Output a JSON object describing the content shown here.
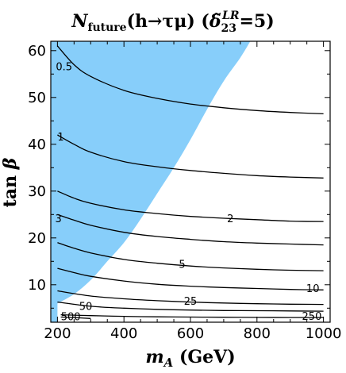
{
  "chart_data": {
    "type": "contour",
    "title": {
      "main": "N",
      "main_sub": "future",
      "process": "(h→τμ) (",
      "delta": "δ̃",
      "delta_sub": "23",
      "delta_sup": "LR",
      "tail": "=5)"
    },
    "xlabel": {
      "var": "m",
      "sub": "A",
      "unit": " (GeV)"
    },
    "ylabel": {
      "var": "tan ",
      "greek": "β"
    },
    "xlim": [
      180,
      1020
    ],
    "ylim": [
      2,
      62
    ],
    "xticks": [
      200,
      400,
      600,
      800,
      1000
    ],
    "yticks": [
      10,
      20,
      30,
      40,
      50,
      60
    ],
    "excluded_region_color": "#87cefa",
    "excluded_region_boundary": [
      [
        200,
        6
      ],
      [
        250,
        8
      ],
      [
        300,
        11
      ],
      [
        350,
        15
      ],
      [
        400,
        19
      ],
      [
        450,
        24
      ],
      [
        500,
        29.5
      ],
      [
        550,
        35
      ],
      [
        600,
        41
      ],
      [
        650,
        47.5
      ],
      [
        700,
        53.5
      ],
      [
        750,
        58.5
      ],
      [
        780,
        62
      ]
    ],
    "contours": [
      {
        "label": "0.5",
        "points": [
          [
            200,
            61
          ],
          [
            250,
            57
          ],
          [
            300,
            54.5
          ],
          [
            400,
            51.5
          ],
          [
            500,
            49.8
          ],
          [
            600,
            48.6
          ],
          [
            700,
            47.8
          ],
          [
            800,
            47.2
          ],
          [
            900,
            46.8
          ],
          [
            1000,
            46.5
          ]
        ]
      },
      {
        "label": "1",
        "points": [
          [
            200,
            42
          ],
          [
            250,
            40
          ],
          [
            300,
            38.3
          ],
          [
            400,
            36.3
          ],
          [
            500,
            35.2
          ],
          [
            600,
            34.4
          ],
          [
            700,
            33.8
          ],
          [
            800,
            33.3
          ],
          [
            900,
            33
          ],
          [
            1000,
            32.8
          ]
        ]
      },
      {
        "label": "2",
        "points": [
          [
            200,
            30
          ],
          [
            250,
            28.5
          ],
          [
            300,
            27.4
          ],
          [
            400,
            26
          ],
          [
            500,
            25.2
          ],
          [
            600,
            24.6
          ],
          [
            700,
            24.2
          ],
          [
            800,
            23.9
          ],
          [
            900,
            23.6
          ],
          [
            1000,
            23.5
          ]
        ]
      },
      {
        "label": "3",
        "points": [
          [
            200,
            25
          ],
          [
            250,
            23.8
          ],
          [
            300,
            22.7
          ],
          [
            400,
            21.2
          ],
          [
            500,
            20.3
          ],
          [
            600,
            19.7
          ],
          [
            700,
            19.2
          ],
          [
            800,
            18.9
          ],
          [
            900,
            18.7
          ],
          [
            1000,
            18.5
          ]
        ]
      },
      {
        "label": "5",
        "points": [
          [
            200,
            19
          ],
          [
            250,
            17.8
          ],
          [
            300,
            16.8
          ],
          [
            400,
            15.4
          ],
          [
            500,
            14.6
          ],
          [
            600,
            14
          ],
          [
            700,
            13.6
          ],
          [
            800,
            13.3
          ],
          [
            900,
            13.1
          ],
          [
            1000,
            13
          ]
        ]
      },
      {
        "label": "10",
        "points": [
          [
            200,
            13.5
          ],
          [
            250,
            12.6
          ],
          [
            300,
            11.8
          ],
          [
            400,
            10.8
          ],
          [
            500,
            10.1
          ],
          [
            600,
            9.7
          ],
          [
            700,
            9.4
          ],
          [
            800,
            9.2
          ],
          [
            900,
            9
          ],
          [
            1000,
            8.9
          ]
        ]
      },
      {
        "label": "25",
        "points": [
          [
            200,
            8.7
          ],
          [
            300,
            7.6
          ],
          [
            400,
            7
          ],
          [
            500,
            6.6
          ],
          [
            600,
            6.3
          ],
          [
            700,
            6.1
          ],
          [
            800,
            5.95
          ],
          [
            900,
            5.85
          ],
          [
            1000,
            5.8
          ]
        ]
      },
      {
        "label": "50",
        "points": [
          [
            200,
            6.3
          ],
          [
            300,
            5.4
          ],
          [
            400,
            5
          ],
          [
            500,
            4.75
          ],
          [
            600,
            4.6
          ],
          [
            700,
            4.5
          ],
          [
            800,
            4.45
          ],
          [
            900,
            4.4
          ],
          [
            1000,
            4.35
          ]
        ]
      },
      {
        "label": "250",
        "points": [
          [
            210,
            3.6
          ],
          [
            300,
            3.4
          ],
          [
            400,
            3.25
          ],
          [
            500,
            3.15
          ],
          [
            600,
            3.1
          ],
          [
            700,
            3.05
          ],
          [
            800,
            3.02
          ],
          [
            900,
            3
          ],
          [
            1000,
            3
          ]
        ]
      },
      {
        "label": "500",
        "points": [
          [
            210,
            3.1
          ],
          [
            260,
            2.95
          ],
          [
            300,
            2.8
          ]
        ]
      }
    ],
    "contour_label_positions": [
      {
        "label": "0.5",
        "x": 220,
        "y": 56.5
      },
      {
        "label": "1",
        "x": 210,
        "y": 41.5
      },
      {
        "label": "3",
        "x": 203,
        "y": 24
      },
      {
        "label": "2",
        "x": 720,
        "y": 24
      },
      {
        "label": "5",
        "x": 575,
        "y": 14.3
      },
      {
        "label": "10",
        "x": 968,
        "y": 9.1
      },
      {
        "label": "25",
        "x": 600,
        "y": 6.4
      },
      {
        "label": "50",
        "x": 285,
        "y": 5.3
      },
      {
        "label": "500",
        "x": 240,
        "y": 3.1
      },
      {
        "label": "250",
        "x": 965,
        "y": 3.2
      }
    ]
  }
}
